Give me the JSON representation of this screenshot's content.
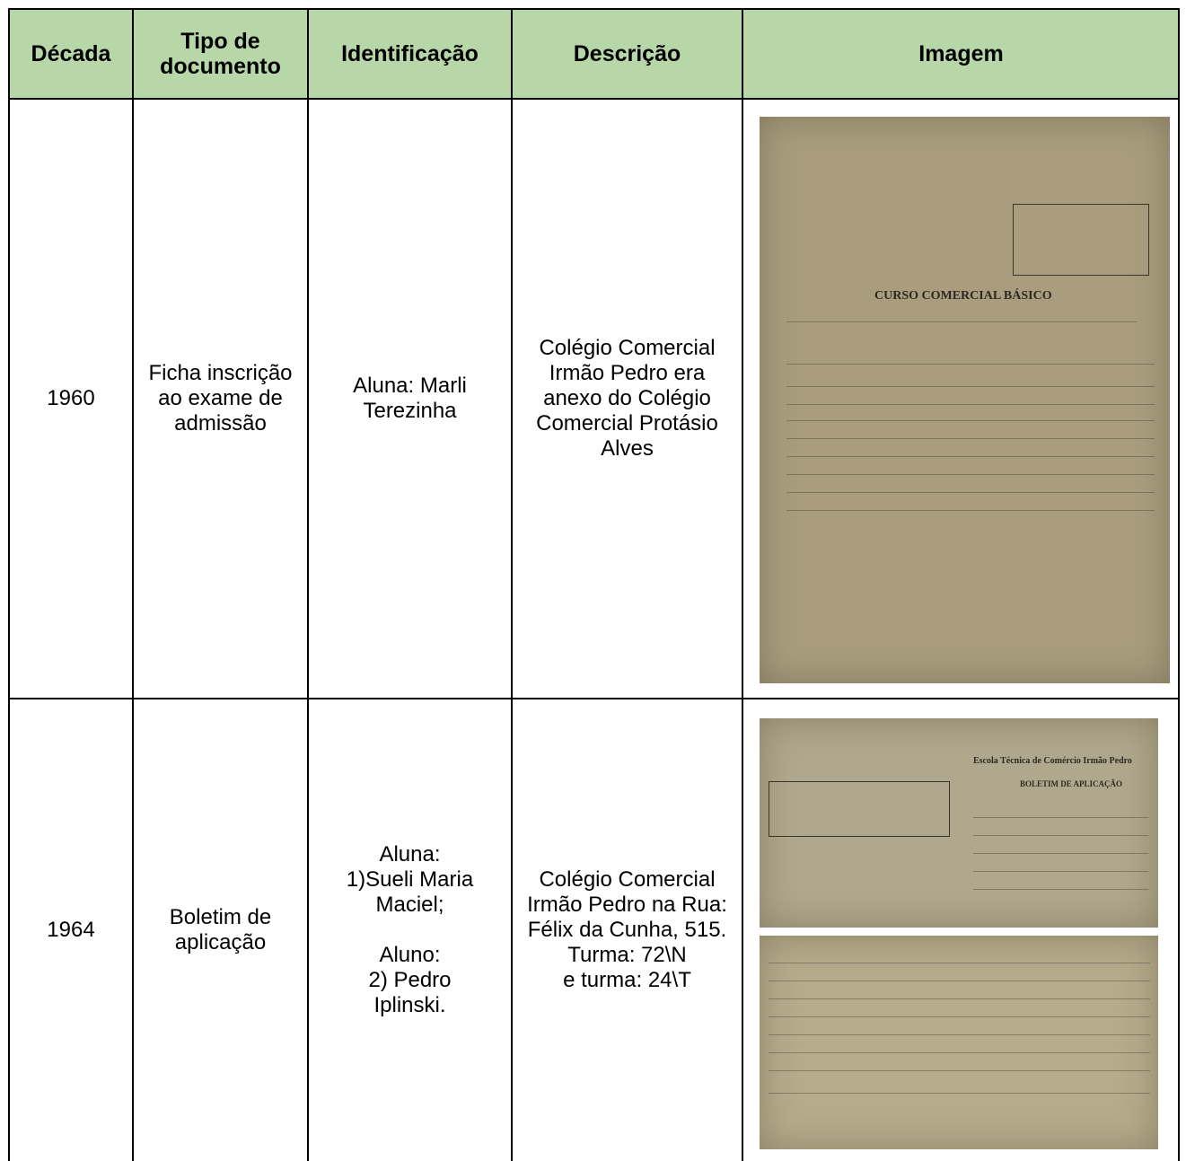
{
  "table": {
    "header": [
      "Década",
      "Tipo de documento",
      "Identificação",
      "Descrição",
      "Imagem"
    ],
    "rows": [
      [
        "1960",
        "Ficha inscrição ao exame de admissão",
        "Aluna: Marli Terezinha",
        "Colégio Comercial Irmão Pedro era anexo do Colégio Comercial Protásio Alves"
      ],
      [
        "1964",
        "Boletim de aplicação",
        "Aluna:\n1)Sueli Maria Maciel;\n\nAluno:\n2) Pedro Iplinski.",
        "Colégio Comercial Irmão Pedro na Rua: Félix da Cunha, 515.\nTurma: 72\\N\ne turma: 24\\T"
      ]
    ]
  },
  "images": {
    "ficha_title": "CURSO COMERCIAL BÁSICO",
    "boletim_school": "Escola Técnica de Comércio Irmão Pedro",
    "boletim_title": "BOLETIM DE APLICAÇÃO"
  }
}
